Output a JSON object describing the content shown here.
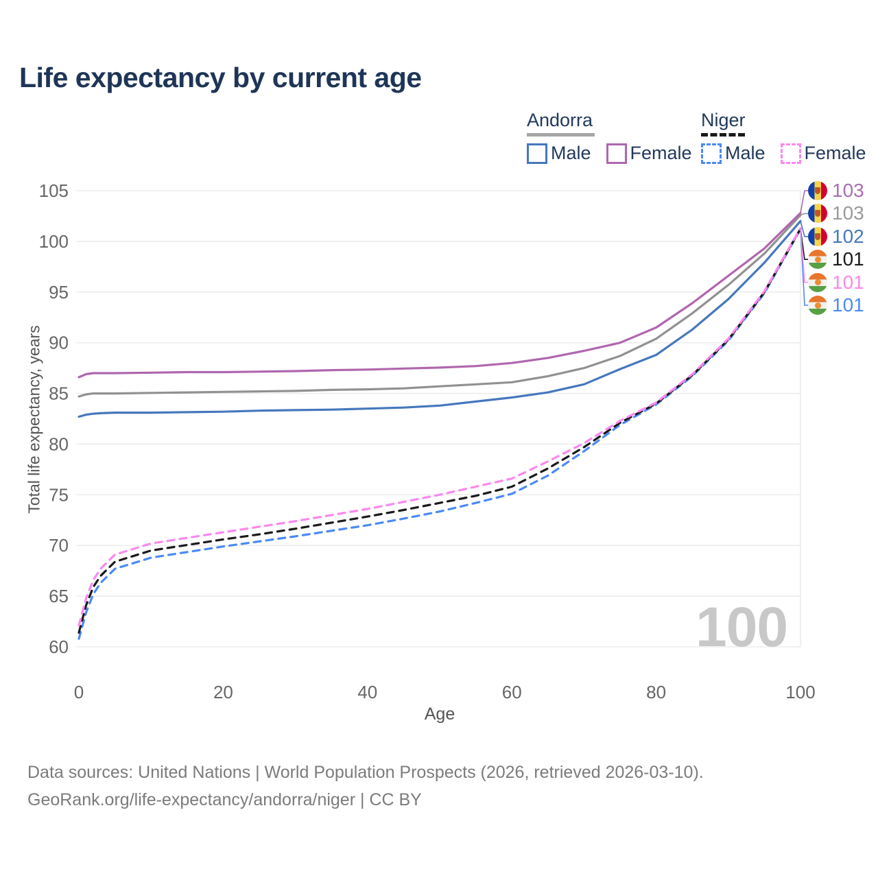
{
  "title": "Life expectancy by current age",
  "legend": {
    "groups": [
      {
        "name": "Andorra",
        "line_style": "solid",
        "line_color": "#a6a6a6",
        "items": [
          {
            "label": "Male",
            "color": "#4677bd"
          },
          {
            "label": "Female",
            "color": "#b066ae"
          }
        ]
      },
      {
        "name": "Niger",
        "line_style": "dashed",
        "line_color": "#1a1a1a",
        "items": [
          {
            "label": "Male",
            "color": "#4a8af4"
          },
          {
            "label": "Female",
            "color": "#fb87ef"
          }
        ]
      }
    ]
  },
  "watermark": "100",
  "right_labels": [
    {
      "value": "103",
      "color": "#a76fb0",
      "flag": "andorra"
    },
    {
      "value": "103",
      "color": "#9a9a9a",
      "flag": "andorra"
    },
    {
      "value": "102",
      "color": "#4677bd",
      "flag": "andorra"
    },
    {
      "value": "101",
      "color": "#1a1a1a",
      "flag": "niger"
    },
    {
      "value": "101",
      "color": "#fb87ef",
      "flag": "niger"
    },
    {
      "value": "101",
      "color": "#4a8af4",
      "flag": "niger"
    }
  ],
  "chart_data": {
    "type": "line",
    "title": "Life expectancy by current age",
    "xlabel": "Age",
    "ylabel": "Total life expectancy, years",
    "xlim": [
      0,
      100
    ],
    "ylim": [
      60,
      105
    ],
    "xticks": [
      0,
      20,
      40,
      60,
      80,
      100
    ],
    "yticks": [
      60,
      65,
      70,
      75,
      80,
      85,
      90,
      95,
      100,
      105
    ],
    "grid": "horizontal",
    "legend_position": "top-right",
    "current_age_indicator": 100,
    "x": [
      0,
      1,
      2,
      3,
      5,
      10,
      15,
      20,
      25,
      30,
      35,
      40,
      45,
      50,
      55,
      60,
      65,
      70,
      75,
      80,
      85,
      90,
      95,
      100
    ],
    "series": [
      {
        "name": "Andorra Male",
        "color": "#4677bd",
        "dash": "solid",
        "flag": "andorra",
        "end_label": "102",
        "label_row": 2,
        "values": [
          82.7,
          82.9,
          83.0,
          83.05,
          83.1,
          83.1,
          83.15,
          83.2,
          83.3,
          83.35,
          83.4,
          83.5,
          83.6,
          83.8,
          84.2,
          84.6,
          85.1,
          85.9,
          87.4,
          88.8,
          91.3,
          94.3,
          97.9,
          102.0
        ]
      },
      {
        "name": "Andorra",
        "color": "#919191",
        "dash": "solid",
        "flag": "andorra",
        "end_label": "103",
        "label_row": 1,
        "values": [
          84.7,
          84.9,
          85.0,
          85.0,
          85.0,
          85.05,
          85.1,
          85.15,
          85.2,
          85.25,
          85.35,
          85.4,
          85.5,
          85.7,
          85.9,
          86.1,
          86.7,
          87.5,
          88.7,
          90.4,
          92.9,
          95.7,
          98.8,
          102.6
        ]
      },
      {
        "name": "Andorra Female",
        "color": "#b066ae",
        "dash": "solid",
        "flag": "andorra",
        "end_label": "103",
        "label_row": 0,
        "values": [
          86.6,
          86.9,
          87.0,
          87.0,
          87.0,
          87.05,
          87.1,
          87.1,
          87.15,
          87.2,
          87.3,
          87.35,
          87.45,
          87.55,
          87.7,
          88.0,
          88.5,
          89.2,
          90.0,
          91.5,
          93.9,
          96.6,
          99.3,
          102.8
        ]
      },
      {
        "name": "Niger Male",
        "color": "#4a8af4",
        "dash": "dashed",
        "flag": "niger",
        "end_label": "101",
        "label_row": 5,
        "values": [
          60.8,
          63.4,
          65.2,
          66.3,
          67.7,
          68.8,
          69.35,
          69.9,
          70.4,
          70.9,
          71.45,
          72.0,
          72.65,
          73.35,
          74.2,
          75.1,
          76.9,
          79.3,
          81.9,
          83.9,
          86.7,
          90.2,
          94.9,
          101.2
        ]
      },
      {
        "name": "Niger",
        "color": "#1a1a1a",
        "dash": "dashed",
        "flag": "niger",
        "end_label": "101",
        "label_row": 3,
        "values": [
          61.4,
          64.1,
          65.9,
          67.0,
          68.4,
          69.5,
          70.05,
          70.6,
          71.1,
          71.65,
          72.25,
          72.85,
          73.5,
          74.2,
          74.9,
          75.8,
          77.6,
          79.7,
          82.1,
          84.0,
          86.8,
          90.3,
          95.0,
          101.25
        ]
      },
      {
        "name": "Niger Female",
        "color": "#fb87ef",
        "dash": "dashed",
        "flag": "niger",
        "end_label": "101",
        "label_row": 4,
        "values": [
          62.1,
          64.8,
          66.6,
          67.7,
          69.1,
          70.2,
          70.75,
          71.3,
          71.85,
          72.4,
          73.0,
          73.6,
          74.3,
          75.0,
          75.8,
          76.6,
          78.3,
          80.1,
          82.3,
          84.1,
          86.9,
          90.4,
          95.1,
          101.3
        ]
      }
    ]
  },
  "footer": {
    "line1": "Data sources: United Nations | World Population Prospects (2026, retrieved 2026-03-10).",
    "line2": "GeoRank.org/life-expectancy/andorra/niger | CC BY"
  }
}
